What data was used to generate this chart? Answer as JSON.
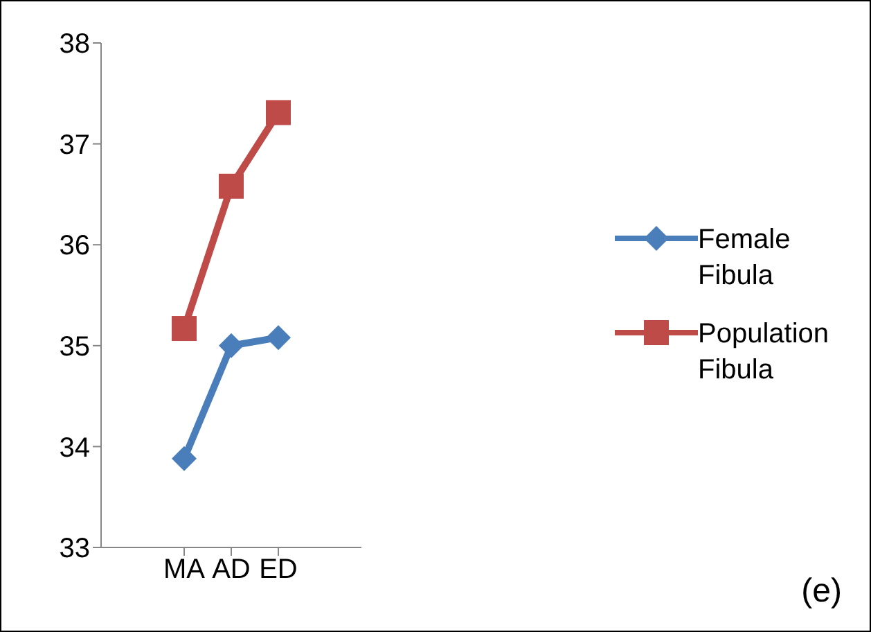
{
  "chart_data": {
    "type": "line",
    "categories": [
      "MA",
      "AD",
      "ED"
    ],
    "series": [
      {
        "name": "Female Fibula",
        "color": "#4a7ebb",
        "marker": "diamond",
        "values": [
          33.88,
          35.0,
          35.08
        ]
      },
      {
        "name": "Population Fibula",
        "color": "#be4b48",
        "marker": "square",
        "values": [
          35.17,
          36.58,
          37.31
        ]
      }
    ],
    "ylim": [
      33,
      38
    ],
    "yticks": [
      33,
      34,
      35,
      36,
      37,
      38
    ],
    "grid": false,
    "legend": "right",
    "annotations": [
      "(e)"
    ]
  }
}
